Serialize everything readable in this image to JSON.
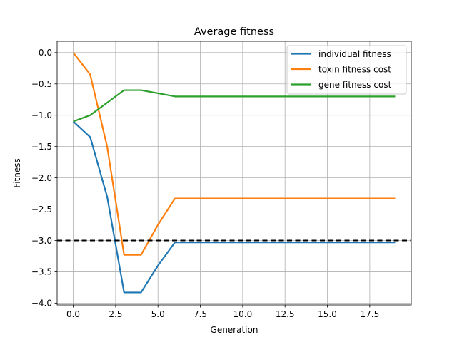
{
  "chart_data": {
    "type": "line",
    "title": "Average fitness",
    "xlabel": "Generation",
    "ylabel": "Fitness",
    "xlim": [
      -0.95,
      19.95
    ],
    "ylim": [
      -4.03,
      0.18
    ],
    "xticks": [
      0.0,
      2.5,
      5.0,
      7.5,
      10.0,
      12.5,
      15.0,
      17.5
    ],
    "xtick_labels": [
      "0.0",
      "2.5",
      "5.0",
      "7.5",
      "10.0",
      "12.5",
      "15.0",
      "17.5"
    ],
    "yticks": [
      0.0,
      -0.5,
      -1.0,
      -1.5,
      -2.0,
      -2.5,
      -3.0,
      -3.5,
      -4.0
    ],
    "ytick_labels": [
      "0.0",
      "−0.5",
      "−1.0",
      "−1.5",
      "−2.0",
      "−2.5",
      "−3.0",
      "−3.5",
      "−4.0"
    ],
    "grid": true,
    "legend_position": "top-right",
    "x": [
      0,
      1,
      2,
      3,
      4,
      5,
      6,
      7,
      8,
      9,
      10,
      11,
      12,
      13,
      14,
      15,
      16,
      17,
      18,
      19
    ],
    "series": [
      {
        "name": "individual fitness",
        "color": "#1f77b4",
        "values": [
          -1.1,
          -1.35,
          -2.3,
          -3.83,
          -3.83,
          -3.4,
          -3.03,
          -3.03,
          -3.03,
          -3.03,
          -3.03,
          -3.03,
          -3.03,
          -3.03,
          -3.03,
          -3.03,
          -3.03,
          -3.03,
          -3.03,
          -3.03
        ]
      },
      {
        "name": "toxin fitness cost",
        "color": "#ff7f0e",
        "values": [
          0.0,
          -0.35,
          -1.5,
          -3.23,
          -3.23,
          -2.75,
          -2.33,
          -2.33,
          -2.33,
          -2.33,
          -2.33,
          -2.33,
          -2.33,
          -2.33,
          -2.33,
          -2.33,
          -2.33,
          -2.33,
          -2.33,
          -2.33
        ]
      },
      {
        "name": "gene fitness cost",
        "color": "#2ca02c",
        "values": [
          -1.1,
          -1.0,
          -0.8,
          -0.6,
          -0.6,
          -0.65,
          -0.7,
          -0.7,
          -0.7,
          -0.7,
          -0.7,
          -0.7,
          -0.7,
          -0.7,
          -0.7,
          -0.7,
          -0.7,
          -0.7,
          -0.7,
          -0.7
        ]
      }
    ],
    "reference_line": {
      "y": -3.0,
      "style": "dashed",
      "color": "#000000"
    }
  }
}
